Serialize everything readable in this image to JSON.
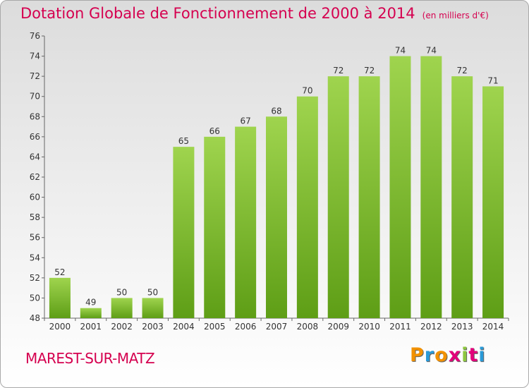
{
  "title": "Dotation Globale de Fonctionnement de 2000 à 2014",
  "unit_note": "(en milliers d'€)",
  "place_name": "MAREST-SUR-MATZ",
  "logo": {
    "letters": [
      "P",
      "r",
      "o",
      "x",
      "i",
      "t",
      "i"
    ],
    "colors": [
      "#f29100",
      "#2a9ad8",
      "#f29100",
      "#e2007a",
      "#8dc63f",
      "#e2007a",
      "#2a9ad8"
    ]
  },
  "colors": {
    "title": "#d5004f",
    "bar_top": "#9fd44e",
    "bar_bottom": "#5e9e16"
  },
  "chart_data": {
    "type": "bar",
    "title": "Dotation Globale de Fonctionnement de 2000 à 2014",
    "subtitle": "(en milliers d'€)",
    "xlabel": "",
    "ylabel": "",
    "categories": [
      "2000",
      "2001",
      "2002",
      "2003",
      "2004",
      "2005",
      "2006",
      "2007",
      "2008",
      "2009",
      "2010",
      "2011",
      "2012",
      "2013",
      "2014"
    ],
    "values": [
      52,
      49,
      50,
      50,
      65,
      66,
      67,
      68,
      70,
      72,
      72,
      74,
      74,
      72,
      71
    ],
    "ylim": [
      48,
      76
    ],
    "yticks": [
      48,
      50,
      52,
      54,
      56,
      58,
      60,
      62,
      64,
      66,
      68,
      70,
      72,
      74,
      76
    ],
    "grid": false,
    "data_labels": true
  }
}
